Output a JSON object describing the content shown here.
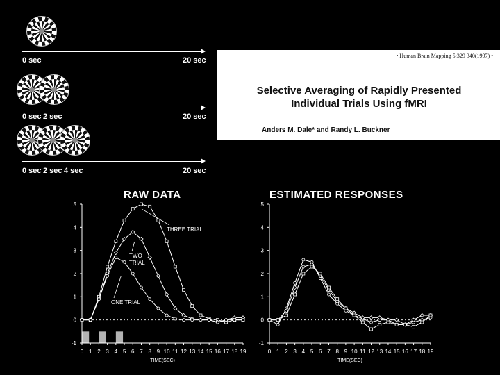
{
  "stimulus": {
    "rows": [
      {
        "checkers": 1,
        "labels": [
          "0 sec"
        ],
        "end_label": "20 sec"
      },
      {
        "checkers": 2,
        "labels": [
          "0 sec",
          "2 sec"
        ],
        "end_label": "20 sec"
      },
      {
        "checkers": 3,
        "labels": [
          "0 sec",
          "2 sec",
          "4 sec"
        ],
        "end_label": "20 sec"
      }
    ]
  },
  "paper": {
    "citation": "• Human Brain Mapping 5:329 340(1997) •",
    "title_line1": "Selective Averaging of Rapidly Presented",
    "title_line2": "Individual Trials Using fMRI",
    "authors": "Anders M. Dale* and Randy L. Buckner"
  },
  "chart_data": [
    {
      "type": "line",
      "title": "RAW DATA",
      "xlabel": "TIME(SEC)",
      "ylabel": "",
      "x": [
        0,
        1,
        2,
        3,
        4,
        5,
        6,
        7,
        8,
        9,
        10,
        11,
        12,
        13,
        14,
        15,
        16,
        17,
        18,
        19
      ],
      "xlim": [
        0,
        19
      ],
      "ylim": [
        -1,
        5
      ],
      "yticks": [
        -1,
        0,
        1,
        2,
        3,
        4,
        5
      ],
      "series": [
        {
          "name": "THREE TRIAL",
          "marker": "square",
          "values": [
            0,
            0,
            1.0,
            2.3,
            3.4,
            4.3,
            4.8,
            5.0,
            4.9,
            4.3,
            3.4,
            2.3,
            1.3,
            0.6,
            0.2,
            0.05,
            0,
            -0.1,
            0,
            0
          ]
        },
        {
          "name": "TWO TRIAL",
          "marker": "diamond",
          "values": [
            0,
            0,
            0.9,
            2.0,
            2.9,
            3.5,
            3.8,
            3.5,
            2.7,
            1.9,
            1.1,
            0.5,
            0.2,
            0.05,
            0,
            0,
            -0.1,
            0,
            0.1,
            0.1
          ]
        },
        {
          "name": "ONE TRIAL",
          "marker": "circle",
          "values": [
            0,
            0,
            0.9,
            1.9,
            2.7,
            2.5,
            2.0,
            1.4,
            0.9,
            0.5,
            0.2,
            0.05,
            0,
            0,
            0,
            0,
            -0.1,
            0,
            0,
            0
          ]
        }
      ],
      "annotations": [
        "THREE TRIAL",
        "TWO TRIAL",
        "ONE TRIAL"
      ],
      "stimulus_bars_at": [
        0,
        2,
        4
      ]
    },
    {
      "type": "line",
      "title": "ESTIMATED RESPONSES",
      "xlabel": "TIME(SEC)",
      "ylabel": "",
      "x": [
        0,
        1,
        2,
        3,
        4,
        5,
        6,
        7,
        8,
        9,
        10,
        11,
        12,
        13,
        14,
        15,
        16,
        17,
        18,
        19
      ],
      "xlim": [
        0,
        19
      ],
      "ylim": [
        -1,
        5
      ],
      "yticks": [
        -1,
        0,
        1,
        2,
        3,
        4,
        5
      ],
      "series": [
        {
          "name": "",
          "marker": "circle",
          "values": [
            0,
            -0.2,
            0.5,
            1.6,
            2.6,
            2.5,
            1.8,
            1.1,
            0.7,
            0.4,
            0.2,
            0.05,
            -0.1,
            0,
            0,
            -0.2,
            -0.2,
            -0.1,
            0,
            0.1
          ]
        },
        {
          "name": "",
          "marker": "diamond",
          "values": [
            0,
            0,
            0.4,
            1.4,
            2.3,
            2.4,
            1.9,
            1.3,
            0.8,
            0.5,
            0.3,
            0.1,
            0.1,
            0.1,
            0,
            0,
            -0.2,
            0,
            0.2,
            0.2
          ]
        },
        {
          "name": "",
          "marker": "square",
          "values": [
            0,
            0,
            0.2,
            1.1,
            2.0,
            2.3,
            2.0,
            1.4,
            0.9,
            0.5,
            0.2,
            -0.1,
            -0.4,
            -0.2,
            -0.1,
            -0.2,
            -0.2,
            -0.3,
            -0.1,
            0.2
          ]
        }
      ]
    }
  ]
}
